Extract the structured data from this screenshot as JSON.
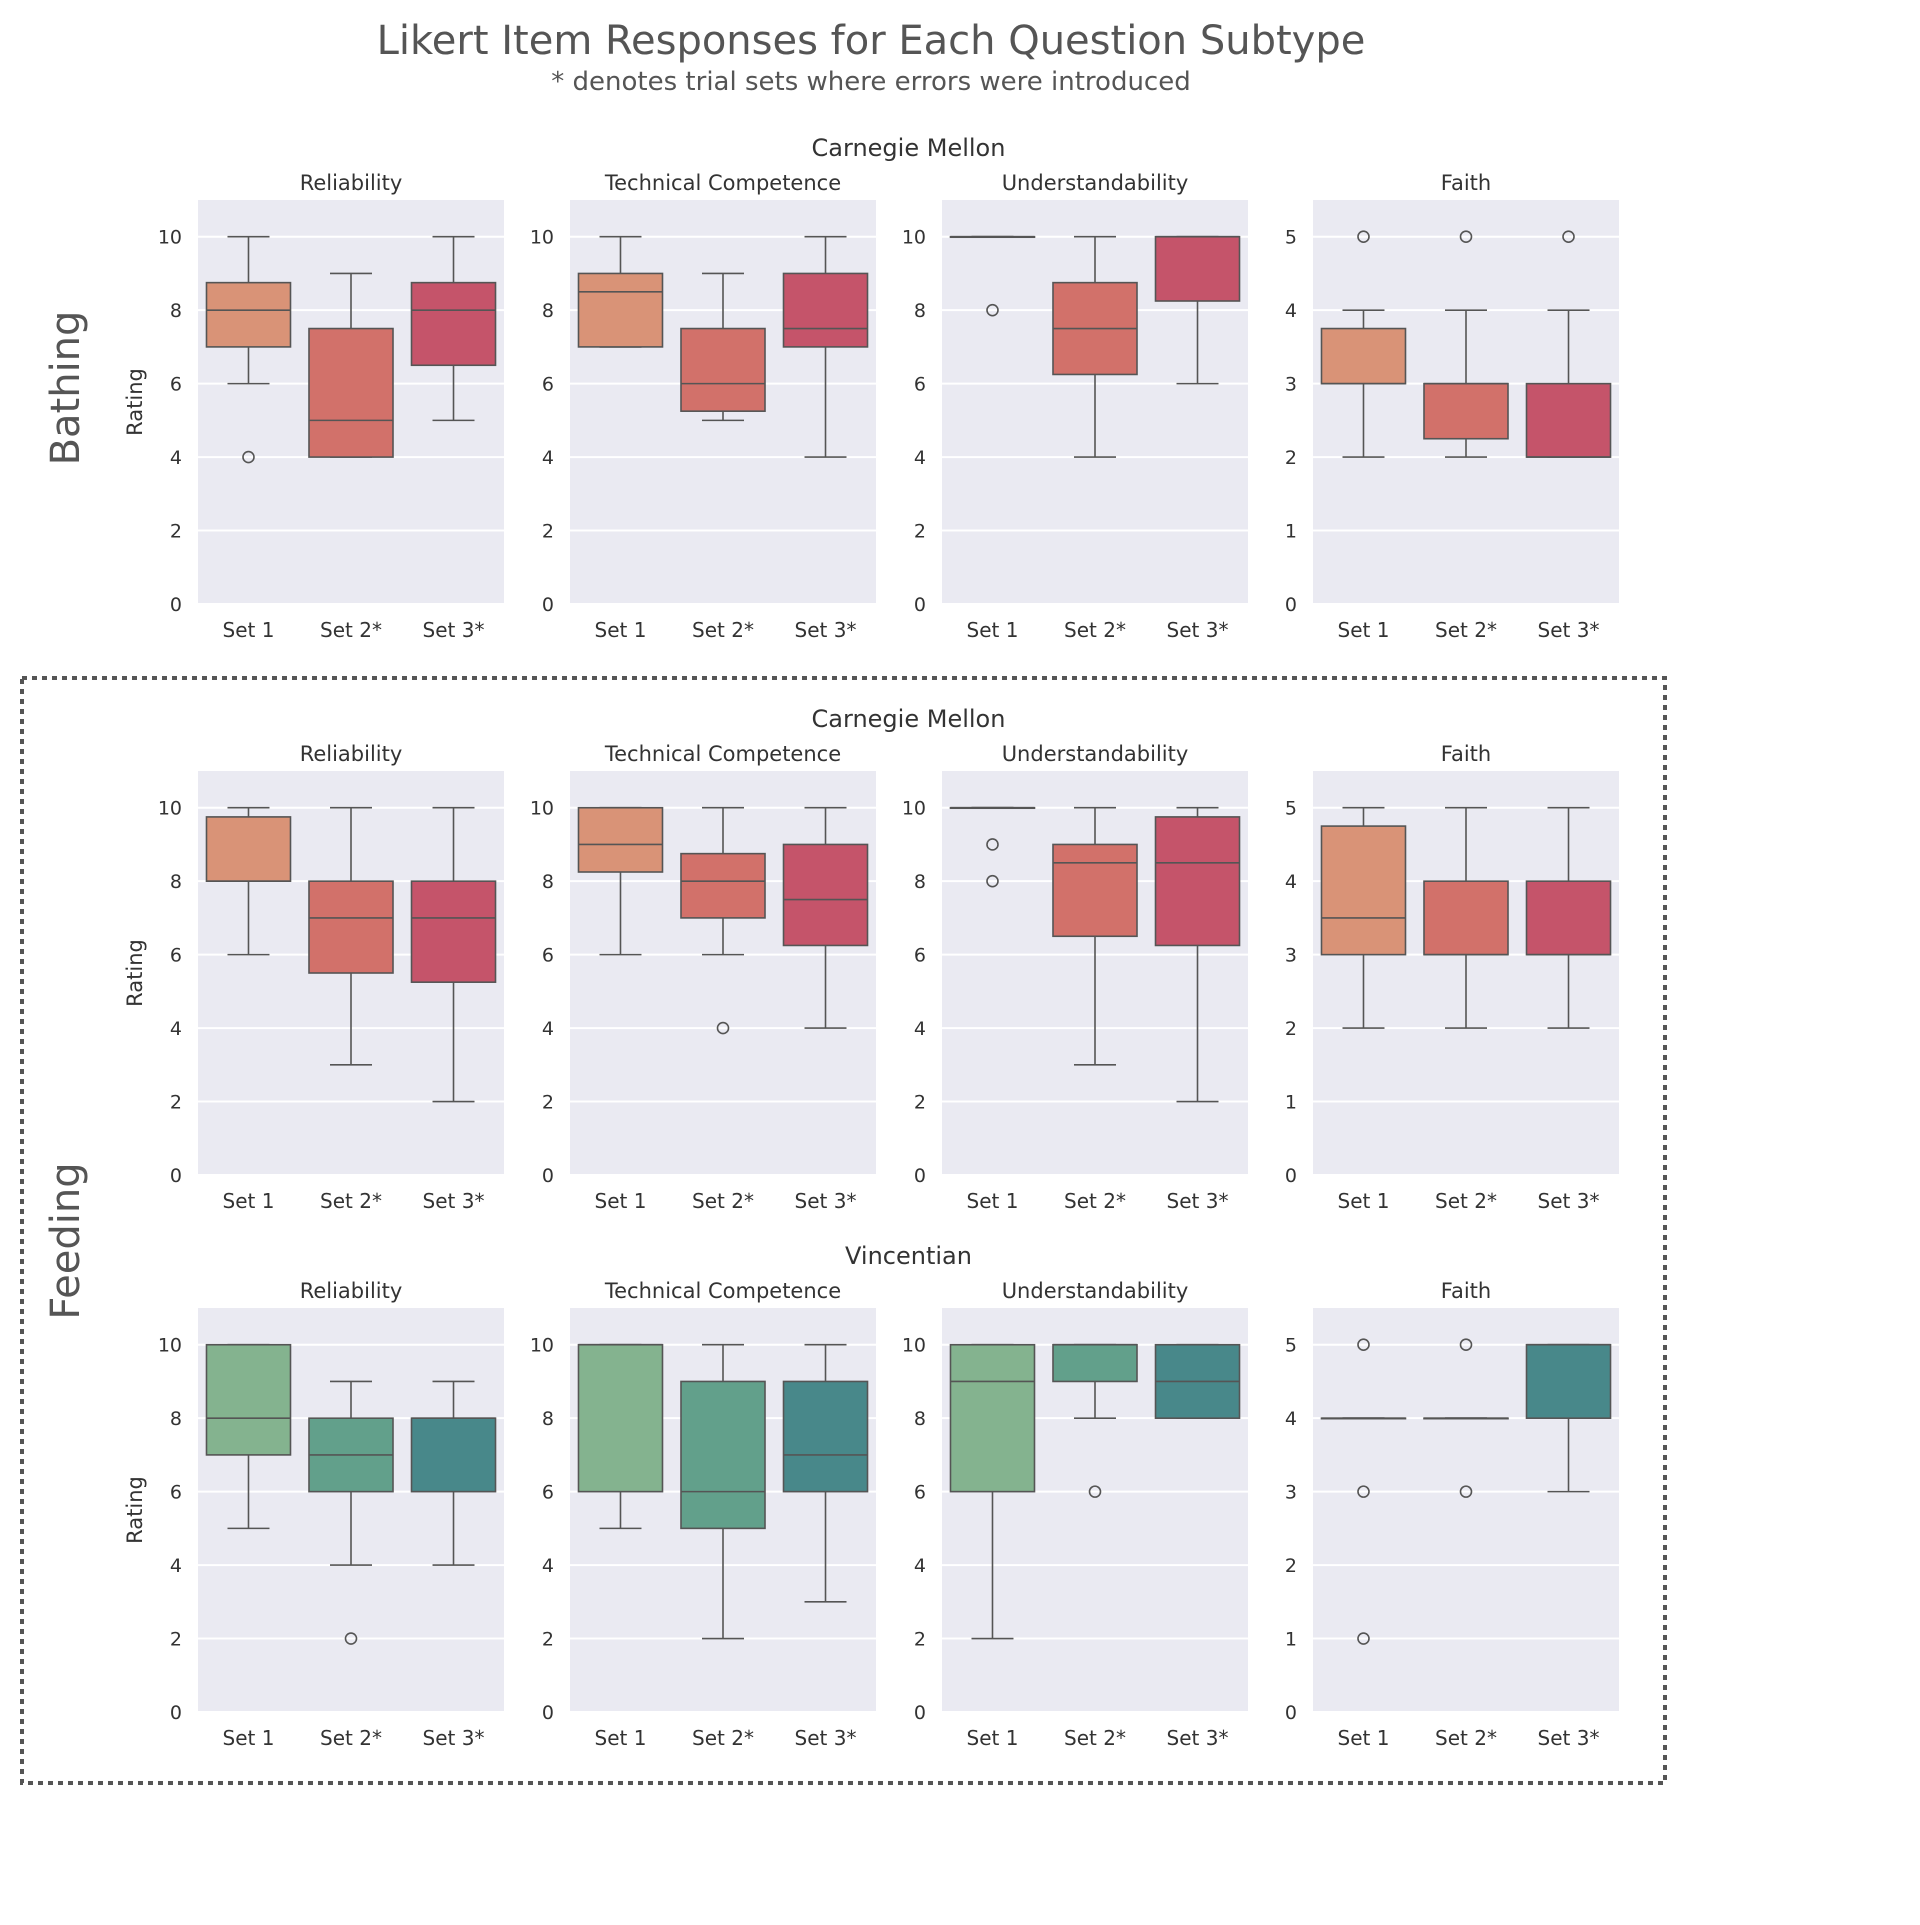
{
  "title": "Likert Item Responses for Each Question Subtype",
  "subtitle": "* denotes trial sets where errors were introduced",
  "palettes": {
    "carnegie": [
      "#d99377",
      "#d2716a",
      "#c5546a"
    ],
    "vincentian": [
      "#84b38f",
      "#62a08b",
      "#48888a"
    ]
  },
  "styles": {
    "panel_bg": "#eaeaf2",
    "grid": "#ffffff",
    "line": "#555555",
    "text": "#333333",
    "title_text": "#555555",
    "box_frame": "#555555"
  },
  "row_labels": {
    "bathing": "Bathing",
    "feeding": "Feeding"
  },
  "ylabel": "Rating",
  "chart_data": [
    {
      "type": "boxplot",
      "row": "Bathing",
      "institution": "Carnegie Mellon",
      "palette": "carnegie",
      "panels": [
        {
          "title": "Reliability",
          "ylim": [
            0,
            11
          ],
          "yticks": [
            0,
            2,
            4,
            6,
            8,
            10
          ],
          "categories": [
            "Set 1",
            "Set 2*",
            "Set 3*"
          ],
          "boxes": [
            {
              "whislo": 6,
              "q1": 7,
              "med": 8,
              "q3": 8.75,
              "whishi": 10,
              "fliers": [
                4
              ]
            },
            {
              "whislo": 4,
              "q1": 4,
              "med": 5,
              "q3": 7.5,
              "whishi": 9,
              "fliers": []
            },
            {
              "whislo": 5,
              "q1": 6.5,
              "med": 8,
              "q3": 8.75,
              "whishi": 10,
              "fliers": []
            }
          ]
        },
        {
          "title": "Technical Competence",
          "ylim": [
            0,
            11
          ],
          "yticks": [
            0,
            2,
            4,
            6,
            8,
            10
          ],
          "categories": [
            "Set 1",
            "Set 2*",
            "Set 3*"
          ],
          "boxes": [
            {
              "whislo": 7,
              "q1": 7,
              "med": 8.5,
              "q3": 9,
              "whishi": 10,
              "fliers": []
            },
            {
              "whislo": 5,
              "q1": 5.25,
              "med": 6,
              "q3": 7.5,
              "whishi": 9,
              "fliers": []
            },
            {
              "whislo": 4,
              "q1": 7,
              "med": 7.5,
              "q3": 9,
              "whishi": 10,
              "fliers": []
            }
          ]
        },
        {
          "title": "Understandability",
          "ylim": [
            0,
            11
          ],
          "yticks": [
            0,
            2,
            4,
            6,
            8,
            10
          ],
          "categories": [
            "Set 1",
            "Set 2*",
            "Set 3*"
          ],
          "boxes": [
            {
              "whislo": 10,
              "q1": 10,
              "med": 10,
              "q3": 10,
              "whishi": 10,
              "fliers": [
                8
              ]
            },
            {
              "whislo": 4,
              "q1": 6.25,
              "med": 7.5,
              "q3": 8.75,
              "whishi": 10,
              "fliers": []
            },
            {
              "whislo": 6,
              "q1": 8.25,
              "med": 10,
              "q3": 10,
              "whishi": 10,
              "fliers": []
            }
          ]
        },
        {
          "title": "Faith",
          "ylim": [
            0,
            5.5
          ],
          "yticks": [
            0,
            1,
            2,
            3,
            4,
            5
          ],
          "categories": [
            "Set 1",
            "Set 2*",
            "Set 3*"
          ],
          "boxes": [
            {
              "whislo": 2,
              "q1": 3,
              "med": 3,
              "q3": 3.75,
              "whishi": 4,
              "fliers": [
                5
              ]
            },
            {
              "whislo": 2,
              "q1": 2.25,
              "med": 3,
              "q3": 3,
              "whishi": 4,
              "fliers": [
                5
              ]
            },
            {
              "whislo": 2,
              "q1": 2,
              "med": 2,
              "q3": 3,
              "whishi": 4,
              "fliers": [
                5
              ]
            }
          ]
        }
      ]
    },
    {
      "type": "boxplot",
      "row": "Feeding",
      "institution": "Carnegie Mellon",
      "palette": "carnegie",
      "panels": [
        {
          "title": "Reliability",
          "ylim": [
            0,
            11
          ],
          "yticks": [
            0,
            2,
            4,
            6,
            8,
            10
          ],
          "categories": [
            "Set 1",
            "Set 2*",
            "Set 3*"
          ],
          "boxes": [
            {
              "whislo": 6,
              "q1": 8,
              "med": 8,
              "q3": 9.75,
              "whishi": 10,
              "fliers": []
            },
            {
              "whislo": 3,
              "q1": 5.5,
              "med": 7,
              "q3": 8,
              "whishi": 10,
              "fliers": []
            },
            {
              "whislo": 2,
              "q1": 5.25,
              "med": 7,
              "q3": 8,
              "whishi": 10,
              "fliers": []
            }
          ]
        },
        {
          "title": "Technical Competence",
          "ylim": [
            0,
            11
          ],
          "yticks": [
            0,
            2,
            4,
            6,
            8,
            10
          ],
          "categories": [
            "Set 1",
            "Set 2*",
            "Set 3*"
          ],
          "boxes": [
            {
              "whislo": 6,
              "q1": 8.25,
              "med": 9,
              "q3": 10,
              "whishi": 10,
              "fliers": []
            },
            {
              "whislo": 6,
              "q1": 7,
              "med": 8,
              "q3": 8.75,
              "whishi": 10,
              "fliers": [
                4
              ]
            },
            {
              "whislo": 4,
              "q1": 6.25,
              "med": 7.5,
              "q3": 9,
              "whishi": 10,
              "fliers": []
            }
          ]
        },
        {
          "title": "Understandability",
          "ylim": [
            0,
            11
          ],
          "yticks": [
            0,
            2,
            4,
            6,
            8,
            10
          ],
          "categories": [
            "Set 1",
            "Set 2*",
            "Set 3*"
          ],
          "boxes": [
            {
              "whislo": 10,
              "q1": 10,
              "med": 10,
              "q3": 10,
              "whishi": 10,
              "fliers": [
                9,
                8
              ]
            },
            {
              "whislo": 3,
              "q1": 6.5,
              "med": 8.5,
              "q3": 9,
              "whishi": 10,
              "fliers": []
            },
            {
              "whislo": 2,
              "q1": 6.25,
              "med": 8.5,
              "q3": 9.75,
              "whishi": 10,
              "fliers": []
            }
          ]
        },
        {
          "title": "Faith",
          "ylim": [
            0,
            5.5
          ],
          "yticks": [
            0,
            1,
            2,
            3,
            4,
            5
          ],
          "categories": [
            "Set 1",
            "Set 2*",
            "Set 3*"
          ],
          "boxes": [
            {
              "whislo": 2,
              "q1": 3,
              "med": 3.5,
              "q3": 4.75,
              "whishi": 5,
              "fliers": []
            },
            {
              "whislo": 2,
              "q1": 3,
              "med": 3,
              "q3": 4,
              "whishi": 5,
              "fliers": []
            },
            {
              "whislo": 2,
              "q1": 3,
              "med": 3,
              "q3": 4,
              "whishi": 5,
              "fliers": []
            }
          ]
        }
      ]
    },
    {
      "type": "boxplot",
      "row": "Feeding",
      "institution": "Vincentian",
      "palette": "vincentian",
      "panels": [
        {
          "title": "Reliability",
          "ylim": [
            0,
            11
          ],
          "yticks": [
            0,
            2,
            4,
            6,
            8,
            10
          ],
          "categories": [
            "Set 1",
            "Set 2*",
            "Set 3*"
          ],
          "boxes": [
            {
              "whislo": 5,
              "q1": 7,
              "med": 8,
              "q3": 10,
              "whishi": 10,
              "fliers": []
            },
            {
              "whislo": 4,
              "q1": 6,
              "med": 7,
              "q3": 8,
              "whishi": 9,
              "fliers": [
                2
              ]
            },
            {
              "whislo": 4,
              "q1": 6,
              "med": 8,
              "q3": 8,
              "whishi": 9,
              "fliers": []
            }
          ]
        },
        {
          "title": "Technical Competence",
          "ylim": [
            0,
            11
          ],
          "yticks": [
            0,
            2,
            4,
            6,
            8,
            10
          ],
          "categories": [
            "Set 1",
            "Set 2*",
            "Set 3*"
          ],
          "boxes": [
            {
              "whislo": 5,
              "q1": 6,
              "med": 10,
              "q3": 10,
              "whishi": 10,
              "fliers": []
            },
            {
              "whislo": 2,
              "q1": 5,
              "med": 6,
              "q3": 9,
              "whishi": 10,
              "fliers": []
            },
            {
              "whislo": 3,
              "q1": 6,
              "med": 7,
              "q3": 9,
              "whishi": 10,
              "fliers": []
            }
          ]
        },
        {
          "title": "Understandability",
          "ylim": [
            0,
            11
          ],
          "yticks": [
            0,
            2,
            4,
            6,
            8,
            10
          ],
          "categories": [
            "Set 1",
            "Set 2*",
            "Set 3*"
          ],
          "boxes": [
            {
              "whislo": 2,
              "q1": 6,
              "med": 9,
              "q3": 10,
              "whishi": 10,
              "fliers": []
            },
            {
              "whislo": 8,
              "q1": 9,
              "med": 10,
              "q3": 10,
              "whishi": 10,
              "fliers": [
                6
              ]
            },
            {
              "whislo": 8,
              "q1": 8,
              "med": 9,
              "q3": 10,
              "whishi": 10,
              "fliers": []
            }
          ]
        },
        {
          "title": "Faith",
          "ylim": [
            0,
            5.5
          ],
          "yticks": [
            0,
            1,
            2,
            3,
            4,
            5
          ],
          "categories": [
            "Set 1",
            "Set 2*",
            "Set 3*"
          ],
          "boxes": [
            {
              "whislo": 4,
              "q1": 4,
              "med": 4,
              "q3": 4,
              "whishi": 4,
              "fliers": [
                5,
                3,
                1
              ]
            },
            {
              "whislo": 4,
              "q1": 4,
              "med": 4,
              "q3": 4,
              "whishi": 4,
              "fliers": [
                5,
                3
              ]
            },
            {
              "whislo": 3,
              "q1": 4,
              "med": 5,
              "q3": 5,
              "whishi": 5,
              "fliers": []
            }
          ]
        }
      ]
    }
  ]
}
